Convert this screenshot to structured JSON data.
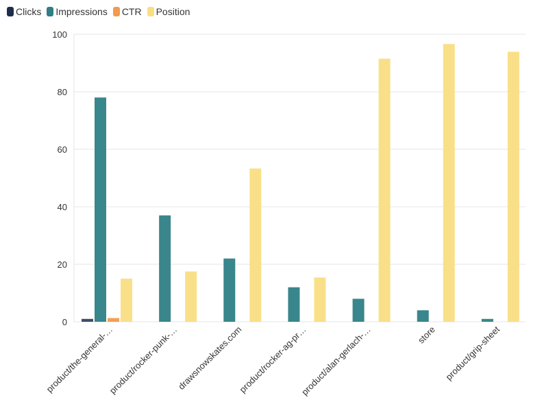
{
  "chart_data": {
    "type": "bar",
    "title": "",
    "xlabel": "",
    "ylabel": "",
    "ylim": [
      0,
      100
    ],
    "yticks": [
      0,
      20,
      40,
      60,
      80,
      100
    ],
    "grid": true,
    "legend_position": "top-left",
    "categories": [
      "product/the-general-…",
      "product/rocker-punk-…",
      "drawsnowskates.com",
      "product/rocker-ag-pr…",
      "product/alan-gerlach-…",
      "store",
      "product/grip-sheet"
    ],
    "series": [
      {
        "name": "Clicks",
        "color": "#1f2d4d",
        "values": [
          1,
          0,
          0,
          0,
          0,
          0,
          0
        ]
      },
      {
        "name": "Impressions",
        "color": "#2e7f86",
        "values": [
          78,
          37,
          22,
          12,
          8,
          4,
          1
        ]
      },
      {
        "name": "CTR",
        "color": "#f59a4a",
        "values": [
          1.3,
          0,
          0,
          0,
          0,
          0,
          0
        ]
      },
      {
        "name": "Position",
        "color": "#f9de82",
        "values": [
          15,
          17.5,
          53.3,
          15.4,
          91.5,
          96.6,
          93.9
        ]
      }
    ]
  }
}
